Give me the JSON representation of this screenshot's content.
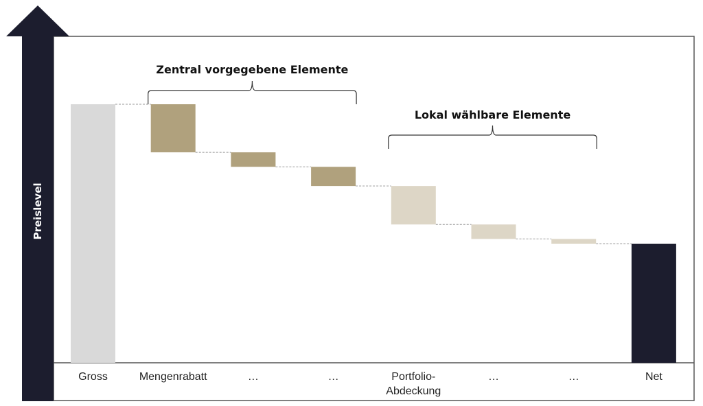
{
  "chart_data": {
    "type": "waterfall",
    "ylabel": "Preislevel",
    "categories": [
      "Gross",
      "Mengenrabatt",
      "…",
      "…",
      "Portfolio-\nAbdeckung",
      "…",
      "…",
      "Net"
    ],
    "values": [
      100,
      -18.6,
      -5.6,
      -7.4,
      -14.9,
      -5.6,
      -1.9,
      46
    ],
    "kinds": [
      "total",
      "central",
      "central",
      "central",
      "local",
      "local",
      "local",
      "total"
    ],
    "ylim": [
      0,
      100
    ],
    "grid": false,
    "groups": [
      {
        "label": "Zentral vorgegebene Elemente",
        "from": 1,
        "to": 3
      },
      {
        "label": "Lokal wählbare Elemente",
        "from": 4,
        "to": 6
      }
    ],
    "colors": {
      "gross": "#d9d9d9",
      "central": "#b0a17d",
      "local": "#ddd6c6",
      "net": "#1c1d2e",
      "axis_arrow": "#1c1d2e",
      "connector": "#999999"
    }
  }
}
